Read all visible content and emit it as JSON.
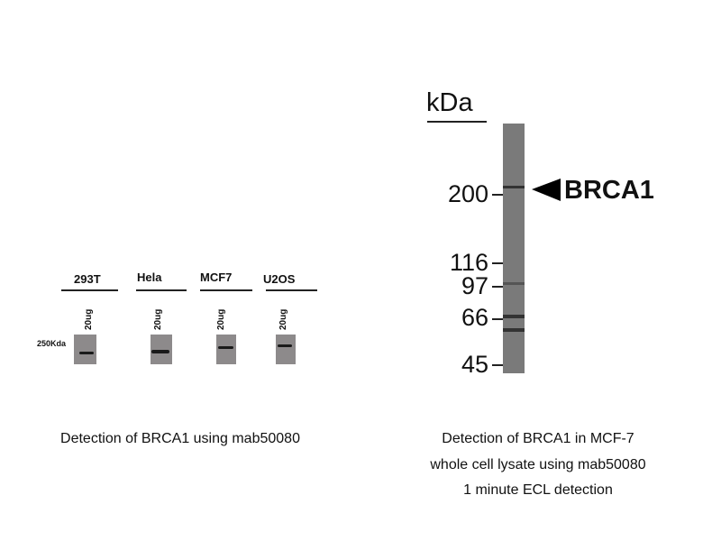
{
  "left_panel": {
    "marker": "250Kda",
    "lanes": [
      {
        "label": "293T",
        "amount": "20ug"
      },
      {
        "label": "Hela",
        "amount": "20ug"
      },
      {
        "label": "MCF7",
        "amount": "20ug"
      },
      {
        "label": "U2OS",
        "amount": "20ug"
      }
    ],
    "caption": "Detection of BRCA1 using mab50080"
  },
  "right_panel": {
    "unit": "kDa",
    "markers": [
      "200",
      "116",
      "97",
      "66",
      "45"
    ],
    "target": "BRCA1",
    "caption_lines": [
      "Detection of BRCA1 in MCF-7",
      "whole cell lysate using mab50080",
      "1 minute ECL detection"
    ]
  }
}
